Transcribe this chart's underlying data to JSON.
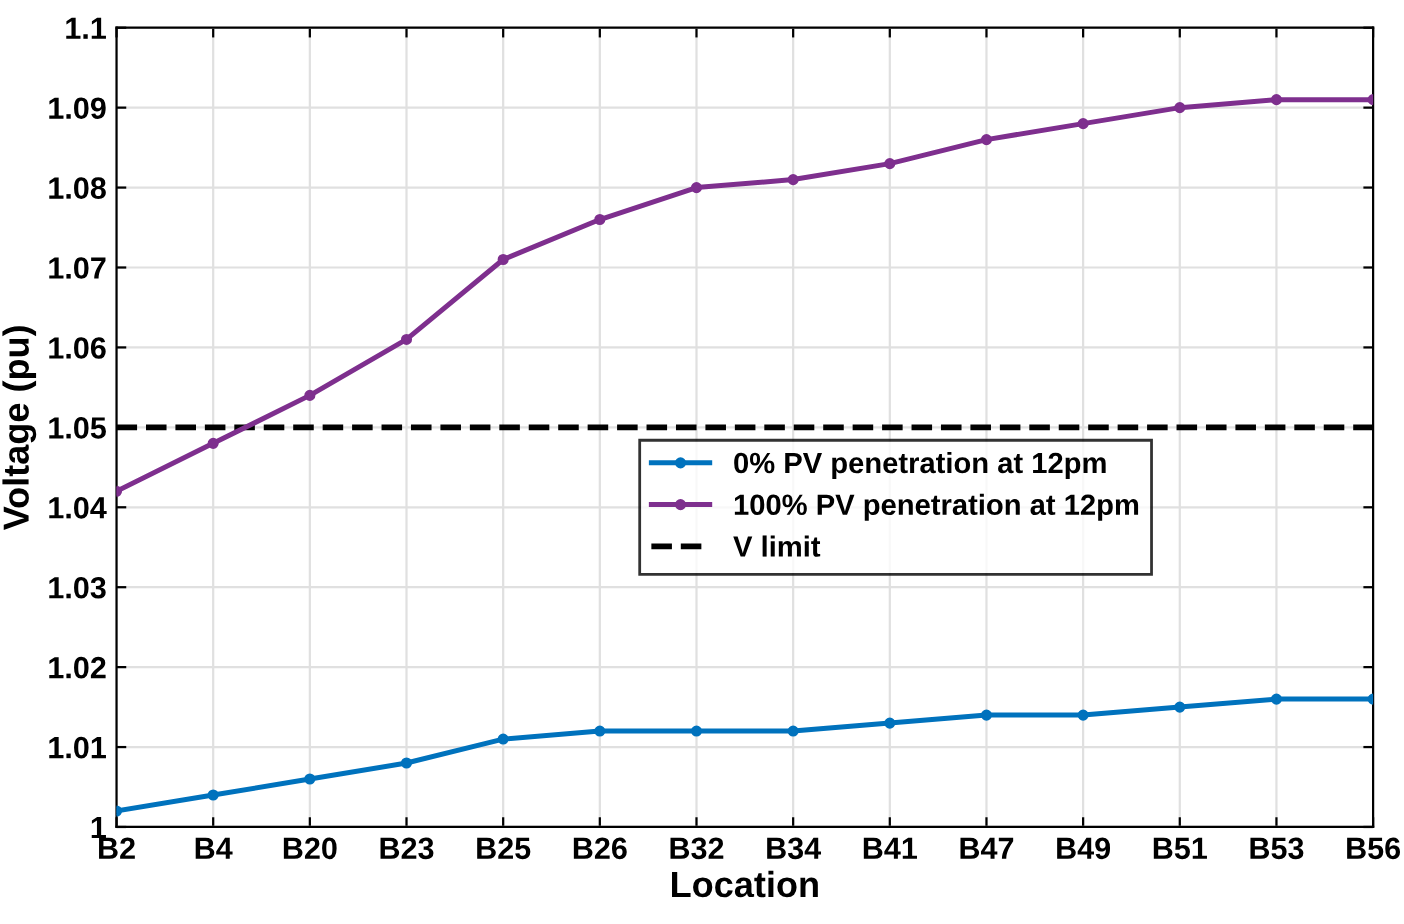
{
  "chart_data": {
    "type": "line",
    "xlabel": "Location",
    "ylabel": "Voltage (pu)",
    "categories": [
      "B2",
      "B4",
      "B20",
      "B23",
      "B25",
      "B26",
      "B32",
      "B34",
      "B41",
      "B47",
      "B49",
      "B51",
      "B53",
      "B56"
    ],
    "series": [
      {
        "name": "0% PV penetration at 12pm",
        "color": "#0072bd",
        "values": [
          1.002,
          1.004,
          1.006,
          1.008,
          1.011,
          1.012,
          1.012,
          1.012,
          1.013,
          1.014,
          1.014,
          1.015,
          1.016,
          1.016
        ]
      },
      {
        "name": "100% PV penetration at 12pm",
        "color": "#7e2f8e",
        "values": [
          1.042,
          1.048,
          1.054,
          1.061,
          1.071,
          1.076,
          1.08,
          1.081,
          1.083,
          1.086,
          1.088,
          1.09,
          1.091,
          1.091
        ]
      }
    ],
    "ref_lines": [
      {
        "axis": "y",
        "value": 1.05,
        "label": "V limit",
        "color": "#000000",
        "line_style": "dashed"
      }
    ],
    "ylim": [
      1,
      1.1
    ],
    "yticks": [
      1,
      1.01,
      1.02,
      1.03,
      1.04,
      1.05,
      1.06,
      1.07,
      1.08,
      1.09,
      1.1
    ],
    "grid": true,
    "legend": "center",
    "marker": "circle",
    "line_style": "solid"
  }
}
